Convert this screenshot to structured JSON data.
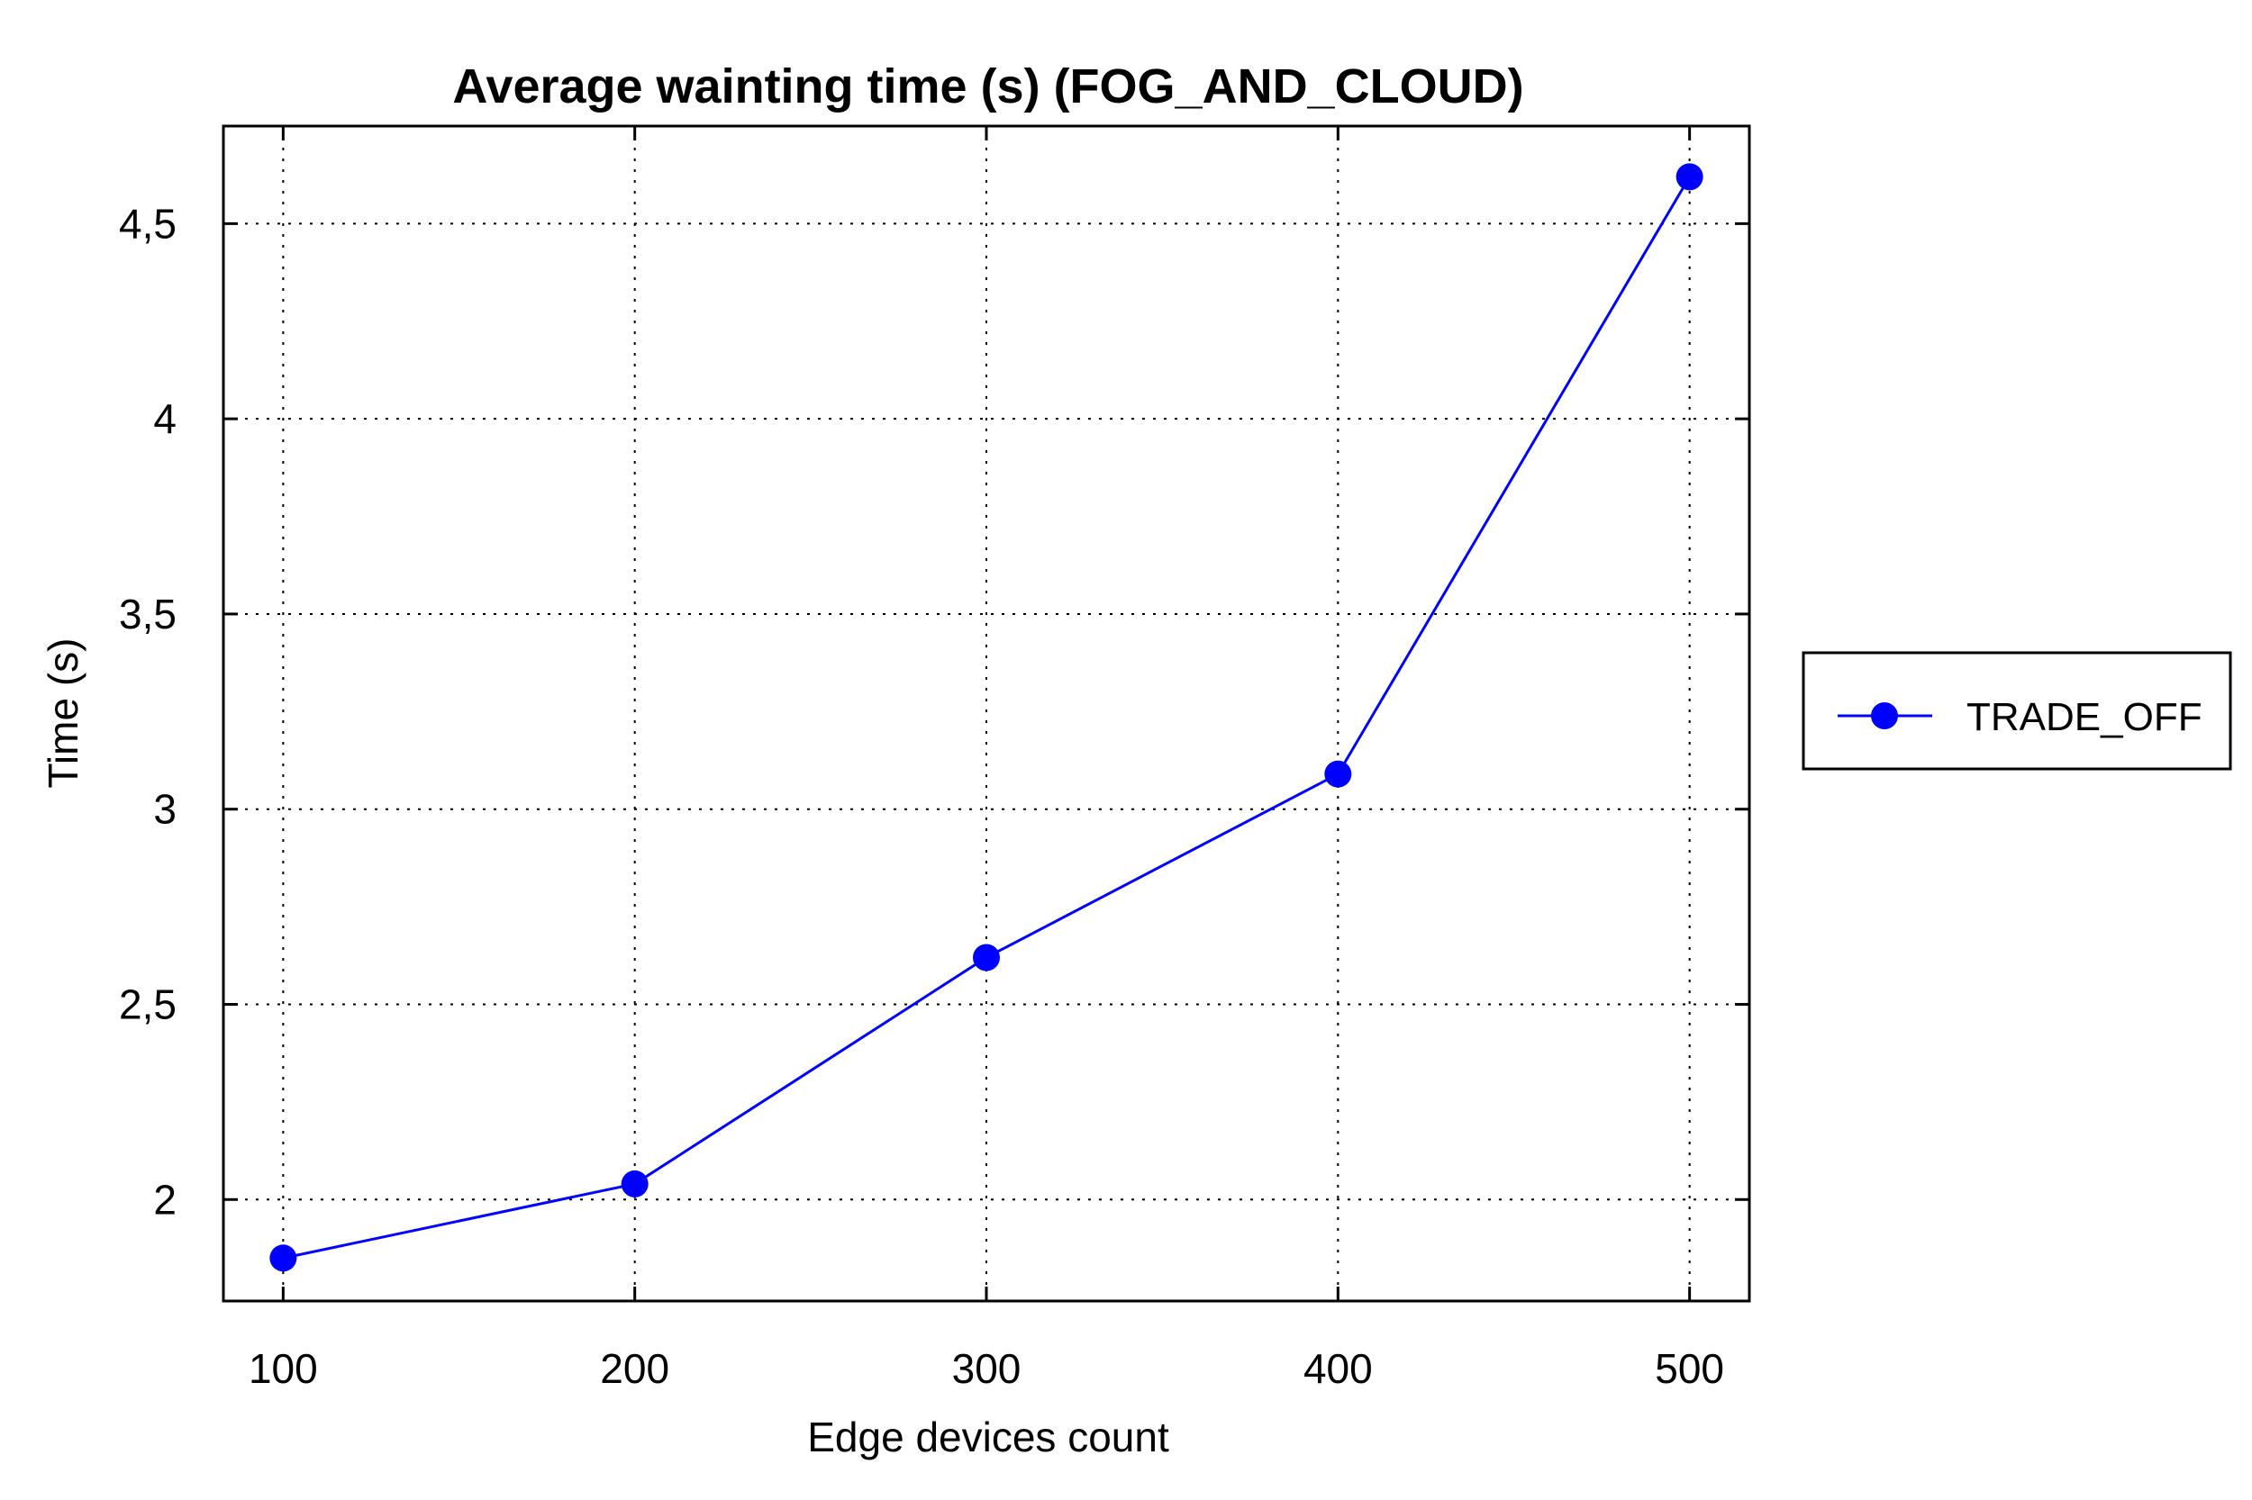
{
  "chart_data": {
    "type": "line",
    "title": "Average wainting time (s) (FOG_AND_CLOUD)",
    "xlabel": "Edge devices count",
    "ylabel": "Time (s)",
    "x": [
      100,
      200,
      300,
      400,
      500
    ],
    "x_tick_labels": [
      "100",
      "200",
      "300",
      "400",
      "500"
    ],
    "xlim": [
      83,
      517
    ],
    "y_ticks": [
      2,
      2.5,
      3,
      3.5,
      4,
      4.5
    ],
    "y_tick_labels": [
      "2",
      "2,5",
      "3",
      "3,5",
      "4",
      "4,5"
    ],
    "ylim": [
      1.74,
      4.75
    ],
    "grid": true,
    "legend_position": "right",
    "series": [
      {
        "name": "TRADE_OFF",
        "color": "#0000ff",
        "marker": "circle",
        "values": [
          1.85,
          2.04,
          2.62,
          3.09,
          4.62
        ]
      }
    ]
  }
}
